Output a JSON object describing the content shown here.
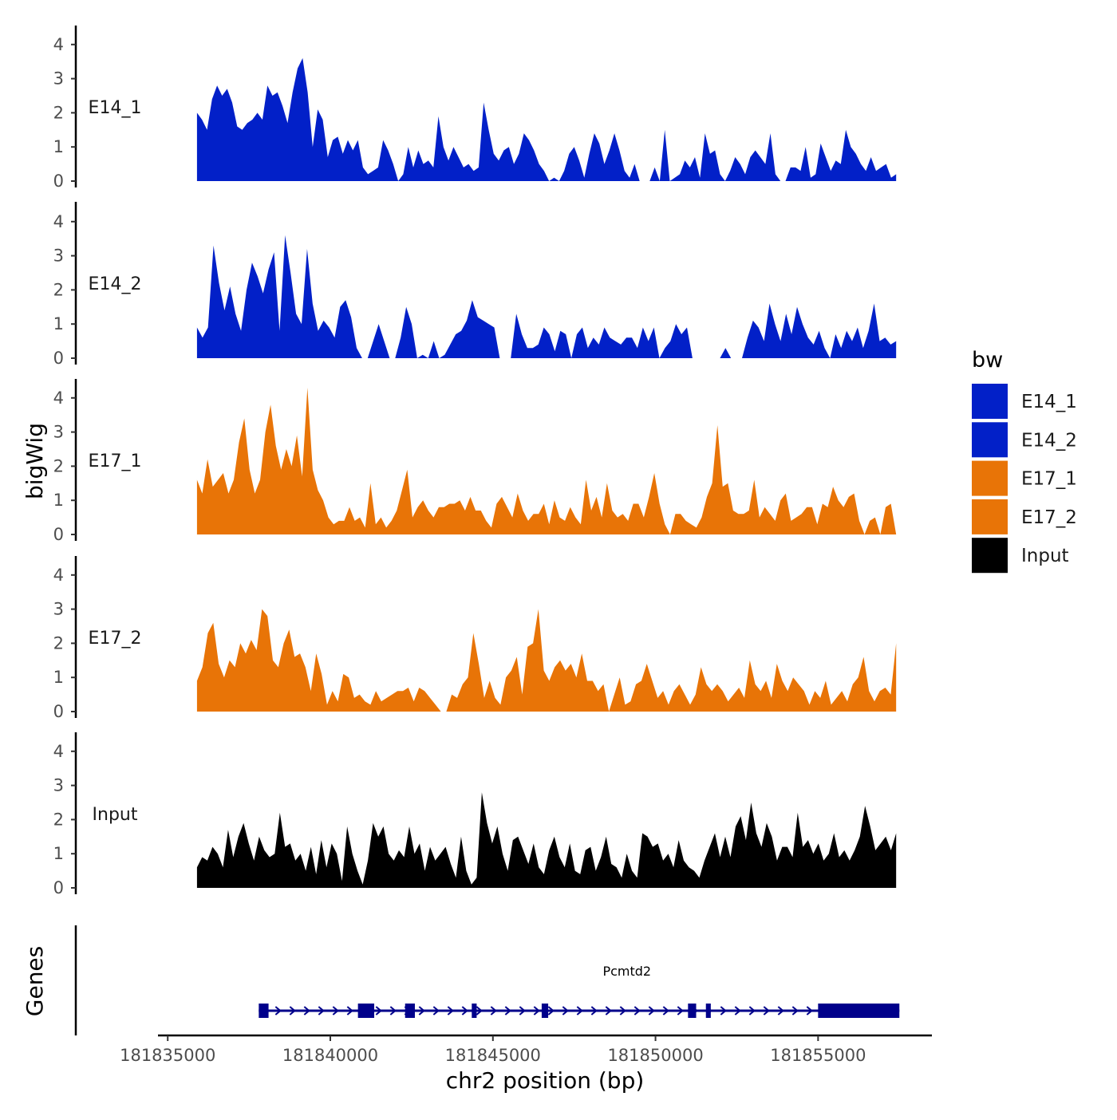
{
  "chart_data": {
    "type": "area",
    "title": "",
    "xlabel": "chr2 position (bp)",
    "ylabel": "bigWig",
    "genes_label": "Genes",
    "xlim": [
      181834700,
      181858500
    ],
    "data_range": [
      181835900,
      181857400
    ],
    "ylim": [
      0,
      4.5
    ],
    "y_ticks": [
      "0",
      "1",
      "2",
      "3",
      "4"
    ],
    "x_ticks": [
      {
        "value": 181835000,
        "label": "181835000"
      },
      {
        "value": 181840000,
        "label": "181840000"
      },
      {
        "value": 181845000,
        "label": "181845000"
      },
      {
        "value": 181850000,
        "label": "181850000"
      },
      {
        "value": 181855000,
        "label": "181855000"
      }
    ],
    "legend": {
      "title": "bw",
      "position": "right",
      "entries": [
        {
          "label": "E14_1",
          "color": "#0220C8"
        },
        {
          "label": "E14_2",
          "color": "#0220C8"
        },
        {
          "label": "E17_1",
          "color": "#E87407"
        },
        {
          "label": "E17_2",
          "color": "#E87407"
        },
        {
          "label": "Input",
          "color": "#000000"
        }
      ]
    },
    "series": [
      {
        "name": "E14_1",
        "color": "#0220C8",
        "values": [
          2.0,
          1.8,
          1.5,
          2.4,
          2.8,
          2.5,
          2.7,
          2.3,
          1.6,
          1.5,
          1.7,
          1.8,
          2.0,
          1.8,
          2.8,
          2.5,
          2.6,
          2.2,
          1.7,
          2.6,
          3.3,
          3.6,
          2.6,
          1.0,
          2.1,
          1.8,
          0.7,
          1.2,
          1.3,
          0.8,
          1.2,
          0.9,
          1.2,
          0.4,
          0.2,
          0.3,
          0.4,
          1.2,
          0.9,
          0.5,
          0,
          0.2,
          1.0,
          0.4,
          0.9,
          0.5,
          0.6,
          0.4,
          1.9,
          1.0,
          0.6,
          1.0,
          0.7,
          0.4,
          0.5,
          0.3,
          0.4,
          2.3,
          1.5,
          0.8,
          0.6,
          0.9,
          1.0,
          0.5,
          0.8,
          1.4,
          1.2,
          0.9,
          0.5,
          0.3,
          0,
          0.1,
          0,
          0.3,
          0.8,
          1.0,
          0.6,
          0.1,
          0.8,
          1.4,
          1.1,
          0.5,
          0.9,
          1.4,
          0.9,
          0.3,
          0.1,
          0.5,
          0,
          0,
          0,
          0.4,
          0,
          1.5,
          0,
          0.1,
          0.2,
          0.6,
          0.4,
          0.7,
          0.1,
          1.4,
          0.8,
          0.9,
          0.2,
          0,
          0.3,
          0.7,
          0.5,
          0.2,
          0.7,
          0.9,
          0.7,
          0.5,
          1.4,
          0.2,
          0,
          0,
          0.4,
          0.4,
          0.3,
          1.0,
          0.1,
          0.2,
          1.1,
          0.7,
          0.3,
          0.6,
          0.5,
          1.5,
          1.0,
          0.8,
          0.5,
          0.3,
          0.7,
          0.3,
          0.4,
          0.5,
          0.1,
          0.2
        ]
      },
      {
        "name": "E14_2",
        "color": "#0220C8",
        "values": [
          0.9,
          0.6,
          0.9,
          3.3,
          2.2,
          1.4,
          2.1,
          1.3,
          0.8,
          2.0,
          2.8,
          2.4,
          1.9,
          2.6,
          3.1,
          0.8,
          3.6,
          2.5,
          1.3,
          1.0,
          3.2,
          1.6,
          0.8,
          1.1,
          0.9,
          0.6,
          1.5,
          1.7,
          1.2,
          0.3,
          0,
          0,
          0.5,
          1.0,
          0.5,
          0,
          0,
          0.6,
          1.5,
          1.0,
          0,
          0.1,
          0,
          0.5,
          0,
          0.1,
          0.4,
          0.7,
          0.8,
          1.1,
          1.7,
          1.2,
          1.1,
          1.0,
          0.9,
          0,
          0,
          0,
          1.3,
          0.7,
          0.3,
          0.3,
          0.4,
          0.9,
          0.7,
          0.2,
          0.8,
          0.7,
          0,
          0.7,
          0.9,
          0.3,
          0.6,
          0.4,
          0.9,
          0.6,
          0.5,
          0.4,
          0.6,
          0.6,
          0.3,
          0.9,
          0.5,
          0.9,
          0,
          0.3,
          0.5,
          1.0,
          0.7,
          0.9,
          0,
          0,
          0,
          0,
          0,
          0,
          0.3,
          0,
          0,
          0,
          0.6,
          1.1,
          0.9,
          0.5,
          1.6,
          1.0,
          0.5,
          1.3,
          0.7,
          1.5,
          1.0,
          0.6,
          0.4,
          0.8,
          0.3,
          0,
          0.7,
          0.3,
          0.8,
          0.5,
          0.9,
          0.3,
          0.8,
          1.6,
          0.5,
          0.6,
          0.4,
          0.5
        ]
      },
      {
        "name": "E17_1",
        "color": "#E87407",
        "values": [
          1.6,
          1.2,
          2.2,
          1.4,
          1.6,
          1.8,
          1.2,
          1.6,
          2.7,
          3.4,
          1.9,
          1.2,
          1.6,
          3.0,
          3.8,
          2.6,
          1.9,
          2.5,
          2.0,
          2.9,
          1.7,
          4.3,
          1.9,
          1.3,
          1.0,
          0.5,
          0.3,
          0.4,
          0.4,
          0.8,
          0.4,
          0.5,
          0.2,
          1.5,
          0.3,
          0.5,
          0.2,
          0.4,
          0.7,
          1.3,
          1.9,
          0.5,
          0.8,
          1.0,
          0.7,
          0.5,
          0.8,
          0.8,
          0.9,
          0.9,
          1.0,
          0.7,
          1.1,
          0.7,
          0.7,
          0.4,
          0.2,
          0.9,
          1.1,
          0.8,
          0.5,
          1.2,
          0.7,
          0.4,
          0.6,
          0.6,
          0.9,
          0.3,
          1.0,
          0.5,
          0.4,
          0.8,
          0.5,
          0.3,
          1.6,
          0.7,
          1.1,
          0.5,
          1.5,
          0.7,
          0.5,
          0.6,
          0.4,
          0.9,
          0.9,
          0.5,
          1.1,
          1.8,
          0.9,
          0.3,
          0,
          0.6,
          0.6,
          0.4,
          0.3,
          0.2,
          0.5,
          1.1,
          1.5,
          3.2,
          1.4,
          1.5,
          0.7,
          0.6,
          0.6,
          0.7,
          1.6,
          0.5,
          0.8,
          0.6,
          0.4,
          1.0,
          1.2,
          0.4,
          0.5,
          0.6,
          0.8,
          0.8,
          0.3,
          0.9,
          0.8,
          1.4,
          1.0,
          0.8,
          1.1,
          1.2,
          0.4,
          0,
          0.4,
          0.5,
          0,
          0.8,
          0.9,
          0
        ]
      },
      {
        "name": "E17_2",
        "color": "#E87407",
        "values": [
          0.9,
          1.3,
          2.3,
          2.6,
          1.4,
          1.0,
          1.5,
          1.3,
          2.0,
          1.7,
          2.1,
          1.8,
          3.0,
          2.8,
          1.5,
          1.3,
          2.0,
          2.4,
          1.6,
          1.7,
          1.3,
          0.6,
          1.7,
          1.1,
          0.2,
          0.6,
          0.3,
          1.1,
          1.0,
          0.4,
          0.5,
          0.3,
          0.2,
          0.6,
          0.3,
          0.4,
          0.5,
          0.6,
          0.6,
          0.7,
          0.3,
          0.7,
          0.6,
          0.4,
          0.2,
          0,
          0,
          0.5,
          0.4,
          0.8,
          1.0,
          2.3,
          1.4,
          0.4,
          0.9,
          0.4,
          0.2,
          1.0,
          1.2,
          1.6,
          0.5,
          1.9,
          2.0,
          3.0,
          1.2,
          0.9,
          1.3,
          1.5,
          1.2,
          1.4,
          1.0,
          1.7,
          0.9,
          0.9,
          0.6,
          0.8,
          0,
          0.5,
          1.0,
          0.2,
          0.3,
          0.8,
          0.9,
          1.4,
          0.9,
          0.4,
          0.6,
          0.2,
          0.6,
          0.8,
          0.5,
          0.2,
          0.5,
          1.3,
          0.8,
          0.6,
          0.8,
          0.6,
          0.3,
          0.5,
          0.7,
          0.4,
          1.5,
          0.8,
          0.6,
          0.9,
          0.4,
          1.4,
          0.9,
          0.6,
          1.0,
          0.8,
          0.6,
          0.2,
          0.6,
          0.4,
          0.9,
          0.2,
          0.4,
          0.6,
          0.3,
          0.8,
          1.0,
          1.6,
          0.6,
          0.3,
          0.6,
          0.7,
          0.5,
          2.0
        ]
      },
      {
        "name": "Input",
        "color": "#000000",
        "values": [
          0.6,
          0.9,
          0.8,
          1.2,
          1.0,
          0.6,
          1.7,
          0.9,
          1.5,
          1.9,
          1.3,
          0.8,
          1.5,
          1.1,
          0.9,
          1.0,
          2.2,
          1.2,
          1.3,
          0.8,
          1.0,
          0.5,
          1.2,
          0.4,
          1.4,
          0.6,
          1.3,
          1.0,
          0.2,
          1.8,
          1.0,
          0.5,
          0.1,
          0.8,
          1.9,
          1.5,
          1.8,
          1.0,
          0.8,
          1.1,
          0.9,
          1.8,
          1.0,
          1.3,
          0.5,
          1.2,
          0.8,
          1.0,
          1.2,
          0.7,
          0.3,
          1.5,
          0.5,
          0.1,
          0.3,
          2.8,
          1.9,
          1.3,
          1.8,
          1.0,
          0.5,
          1.4,
          1.5,
          1.1,
          0.7,
          1.3,
          0.6,
          0.4,
          1.1,
          1.5,
          0.9,
          0.6,
          1.3,
          0.5,
          0.4,
          1.1,
          1.2,
          0.5,
          0.9,
          1.5,
          0.7,
          0.6,
          0.3,
          1.0,
          0.5,
          0.3,
          1.6,
          1.5,
          1.2,
          1.3,
          0.8,
          1.0,
          0.6,
          1.4,
          0.8,
          0.6,
          0.5,
          0.3,
          0.8,
          1.2,
          1.6,
          0.9,
          1.5,
          0.9,
          1.8,
          2.1,
          1.4,
          2.5,
          1.6,
          1.2,
          1.9,
          1.5,
          0.8,
          1.2,
          1.2,
          0.9,
          2.2,
          1.2,
          1.4,
          1.0,
          1.3,
          0.8,
          1.0,
          1.6,
          0.9,
          1.1,
          0.8,
          1.1,
          1.5,
          2.4,
          1.8,
          1.1,
          1.3,
          1.5,
          1.1,
          1.6
        ]
      }
    ],
    "genes": [
      {
        "name": "Pcmtd2",
        "strand": "+",
        "start": 181837800,
        "end": 181857500,
        "exons": [
          [
            181837800,
            181838100
          ],
          [
            181840850,
            181841350
          ],
          [
            181842300,
            181842600
          ],
          [
            181844350,
            181844500
          ],
          [
            181846500,
            181846700
          ],
          [
            181851000,
            181851250
          ],
          [
            181851550,
            181851700
          ],
          [
            181855000,
            181857500
          ]
        ]
      }
    ]
  }
}
